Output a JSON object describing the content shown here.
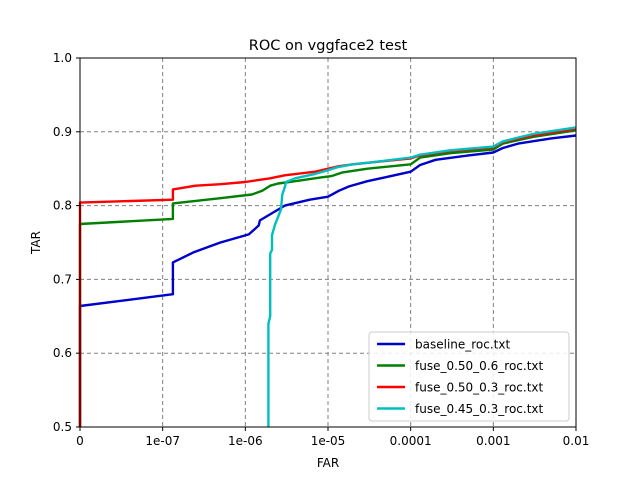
{
  "chart_data": {
    "type": "line",
    "title": "ROC on vggface2 test",
    "xlabel": "FAR",
    "ylabel": "TAR",
    "x_scale": "log",
    "xlim": [
      1e-08,
      0.01
    ],
    "ylim": [
      0.5,
      1.0
    ],
    "x_ticks": [
      {
        "value": 1e-08,
        "label": "0"
      },
      {
        "value": 1e-07,
        "label": "1e-07"
      },
      {
        "value": 1e-06,
        "label": "1e-06"
      },
      {
        "value": 1e-05,
        "label": "1e-05"
      },
      {
        "value": 0.0001,
        "label": "0.0001"
      },
      {
        "value": 0.001,
        "label": "0.001"
      },
      {
        "value": 0.01,
        "label": "0.01"
      }
    ],
    "y_ticks": [
      {
        "value": 0.5,
        "label": "0.5"
      },
      {
        "value": 0.6,
        "label": "0.6"
      },
      {
        "value": 0.7,
        "label": "0.7"
      },
      {
        "value": 0.8,
        "label": "0.8"
      },
      {
        "value": 0.9,
        "label": "0.9"
      },
      {
        "value": 1.0,
        "label": "1.0"
      }
    ],
    "grid": true,
    "legend_position": "lower-right",
    "series": [
      {
        "name": "baseline_roc.txt",
        "color": "#0000cc",
        "points": [
          [
            1e-08,
            0.5
          ],
          [
            1e-08,
            0.664
          ],
          [
            1.33e-07,
            0.68
          ],
          [
            1.33e-07,
            0.723
          ],
          [
            2.4e-07,
            0.737
          ],
          [
            5e-07,
            0.75
          ],
          [
            1.1e-06,
            0.761
          ],
          [
            1.45e-06,
            0.773
          ],
          [
            1.5e-06,
            0.78
          ],
          [
            3e-06,
            0.8
          ],
          [
            6e-06,
            0.808
          ],
          [
            1e-05,
            0.812
          ],
          [
            1.35e-05,
            0.82
          ],
          [
            1.8e-05,
            0.826
          ],
          [
            3e-05,
            0.833
          ],
          [
            0.0001,
            0.846
          ],
          [
            0.00013,
            0.855
          ],
          [
            0.0002,
            0.862
          ],
          [
            0.0005,
            0.868
          ],
          [
            0.001,
            0.872
          ],
          [
            0.0013,
            0.878
          ],
          [
            0.002,
            0.884
          ],
          [
            0.005,
            0.891
          ],
          [
            0.01,
            0.895
          ]
        ]
      },
      {
        "name": "fuse_0.50_0.6_roc.txt",
        "color": "#008000",
        "points": [
          [
            1e-08,
            0.5
          ],
          [
            1e-08,
            0.775
          ],
          [
            1.33e-07,
            0.782
          ],
          [
            1.33e-07,
            0.803
          ],
          [
            5e-07,
            0.81
          ],
          [
            1.2e-06,
            0.815
          ],
          [
            1.6e-06,
            0.82
          ],
          [
            2e-06,
            0.827
          ],
          [
            2.5e-06,
            0.83
          ],
          [
            4e-06,
            0.833
          ],
          [
            8e-06,
            0.838
          ],
          [
            1.1e-05,
            0.84
          ],
          [
            1.5e-05,
            0.845
          ],
          [
            3e-05,
            0.85
          ],
          [
            0.0001,
            0.856
          ],
          [
            0.00013,
            0.865
          ],
          [
            0.0003,
            0.871
          ],
          [
            0.001,
            0.876
          ],
          [
            0.0013,
            0.884
          ],
          [
            0.003,
            0.893
          ],
          [
            0.01,
            0.902
          ]
        ]
      },
      {
        "name": "fuse_0.50_0.3_roc.txt",
        "color": "#ff0000",
        "points": [
          [
            1e-08,
            0.5
          ],
          [
            1e-08,
            0.804
          ],
          [
            1.33e-07,
            0.808
          ],
          [
            1.33e-07,
            0.822
          ],
          [
            2.5e-07,
            0.827
          ],
          [
            5e-07,
            0.829
          ],
          [
            1e-06,
            0.832
          ],
          [
            2e-06,
            0.837
          ],
          [
            3e-06,
            0.841
          ],
          [
            7e-06,
            0.846
          ],
          [
            1e-05,
            0.85
          ],
          [
            1.3e-05,
            0.853
          ],
          [
            2e-05,
            0.856
          ],
          [
            3e-05,
            0.858
          ],
          [
            0.0001,
            0.864
          ],
          [
            0.00013,
            0.868
          ],
          [
            0.0003,
            0.874
          ],
          [
            0.001,
            0.879
          ],
          [
            0.0013,
            0.886
          ],
          [
            0.003,
            0.895
          ],
          [
            0.01,
            0.904
          ]
        ]
      },
      {
        "name": "fuse_0.45_0.3_roc.txt",
        "color": "#00bfbf",
        "points": [
          [
            1.9e-06,
            0.5
          ],
          [
            1.9e-06,
            0.64
          ],
          [
            2e-06,
            0.65
          ],
          [
            2e-06,
            0.735
          ],
          [
            2.1e-06,
            0.74
          ],
          [
            2.1e-06,
            0.76
          ],
          [
            2.3e-06,
            0.775
          ],
          [
            2.5e-06,
            0.785
          ],
          [
            2.7e-06,
            0.795
          ],
          [
            2.8e-06,
            0.815
          ],
          [
            3e-06,
            0.825
          ],
          [
            3.1e-06,
            0.832
          ],
          [
            4e-06,
            0.837
          ],
          [
            7e-06,
            0.843
          ],
          [
            1e-05,
            0.848
          ],
          [
            1.3e-05,
            0.852
          ],
          [
            2e-05,
            0.856
          ],
          [
            3e-05,
            0.858
          ],
          [
            0.0001,
            0.865
          ],
          [
            0.00013,
            0.869
          ],
          [
            0.0003,
            0.875
          ],
          [
            0.001,
            0.88
          ],
          [
            0.0013,
            0.887
          ],
          [
            0.003,
            0.897
          ],
          [
            0.01,
            0.906
          ]
        ]
      }
    ]
  }
}
